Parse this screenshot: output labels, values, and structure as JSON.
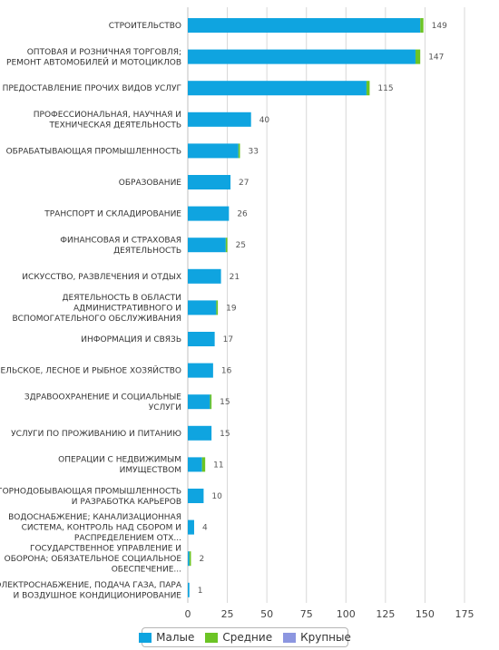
{
  "chart_data": {
    "type": "bar",
    "orientation": "horizontal",
    "stacked": true,
    "categories": [
      "СТРОИТЕЛЬСТВО",
      "ОПТОВАЯ И РОЗНИЧНАЯ ТОРГОВЛЯ; РЕМОНТ АВТОМОБИЛЕЙ И МОТОЦИКЛОВ",
      "ПРЕДОСТАВЛЕНИЕ ПРОЧИХ ВИДОВ УСЛУГ",
      "ПРОФЕССИОНАЛЬНАЯ, НАУЧНАЯ И ТЕХНИЧЕСКАЯ ДЕЯТЕЛЬНОСТЬ",
      "ОБРАБАТЫВАЮЩАЯ ПРОМЫШЛЕННОСТЬ",
      "ОБРАЗОВАНИЕ",
      "ТРАНСПОРТ И СКЛАДИРОВАНИЕ",
      "ФИНАНСОВАЯ И СТРАХОВАЯ ДЕЯТЕЛЬНОСТЬ",
      "ИСКУССТВО, РАЗВЛЕЧЕНИЯ И ОТДЫХ",
      "ДЕЯТЕЛЬНОСТЬ В ОБЛАСТИ АДМИНИСТРАТИВНОГО И ВСПОМОГАТЕЛЬНОГО ОБСЛУЖИВАНИЯ",
      "ИНФОРМАЦИЯ И СВЯЗЬ",
      "СЕЛЬСКОЕ, ЛЕСНОЕ И РЫБНОЕ ХОЗЯЙСТВО",
      "ЗДРАВООХРАНЕНИЕ И СОЦИАЛЬНЫЕ УСЛУГИ",
      "УСЛУГИ ПО ПРОЖИВАНИЮ И ПИТАНИЮ",
      "ОПЕРАЦИИ С НЕДВИЖИМЫМ ИМУЩЕСТВОМ",
      "ГОРНОДОБЫВАЮЩАЯ ПРОМЫШЛЕННОСТЬ И РАЗРАБОТКА КАРЬЕРОВ",
      "ВОДОСНАБЖЕНИЕ; КАНАЛИЗАЦИОННАЯ СИСТЕМА, КОНТРОЛЬ НАД СБОРОМ И РАСПРЕДЕЛЕНИЕМ ОТХ...",
      "ГОСУДАРСТВЕННОЕ УПРАВЛЕНИЕ И ОБОРОНА; ОБЯЗАТЕЛЬНОЕ СОЦИАЛЬНОЕ ОБЕСПЕЧЕНИЕ...",
      "ЭЛЕКТРОСНАБЖЕНИЕ, ПОДАЧА ГАЗА, ПАРА И ВОЗДУШНОЕ КОНДИЦИОНИРОВАНИЕ"
    ],
    "category_lines": [
      [
        "СТРОИТЕЛЬСТВО"
      ],
      [
        "ОПТОВАЯ И РОЗНИЧНАЯ ТОРГОВЛЯ;",
        "РЕМОНТ АВТОМОБИЛЕЙ И МОТОЦИКЛОВ"
      ],
      [
        "ПРЕДОСТАВЛЕНИЕ ПРОЧИХ ВИДОВ УСЛУГ"
      ],
      [
        "ПРОФЕССИОНАЛЬНАЯ, НАУЧНАЯ И",
        "ТЕХНИЧЕСКАЯ ДЕЯТЕЛЬНОСТЬ"
      ],
      [
        "ОБРАБАТЫВАЮЩАЯ ПРОМЫШЛЕННОСТЬ"
      ],
      [
        "ОБРАЗОВАНИЕ"
      ],
      [
        "ТРАНСПОРТ И СКЛАДИРОВАНИЕ"
      ],
      [
        "ФИНАНСОВАЯ И СТРАХОВАЯ",
        "ДЕЯТЕЛЬНОСТЬ"
      ],
      [
        "ИСКУССТВО, РАЗВЛЕЧЕНИЯ И ОТДЫХ"
      ],
      [
        "ДЕЯТЕЛЬНОСТЬ В ОБЛАСТИ",
        "АДМИНИСТРАТИВНОГО И",
        "ВСПОМОГАТЕЛЬНОГО ОБСЛУЖИВАНИЯ"
      ],
      [
        "ИНФОРМАЦИЯ И СВЯЗЬ"
      ],
      [
        "СЕЛЬСКОЕ, ЛЕСНОЕ И РЫБНОЕ ХОЗЯЙСТВО"
      ],
      [
        "ЗДРАВООХРАНЕНИЕ И СОЦИАЛЬНЫЕ",
        "УСЛУГИ"
      ],
      [
        "УСЛУГИ ПО ПРОЖИВАНИЮ И ПИТАНИЮ"
      ],
      [
        "ОПЕРАЦИИ С НЕДВИЖИМЫМ",
        "ИМУЩЕСТВОМ"
      ],
      [
        "ГОРНОДОБЫВАЮЩАЯ ПРОМЫШЛЕННОСТЬ",
        "И РАЗРАБОТКА КАРЬЕРОВ"
      ],
      [
        "ВОДОСНАБЖЕНИЕ; КАНАЛИЗАЦИОННАЯ",
        "СИСТЕМА, КОНТРОЛЬ НАД СБОРОМ И",
        "РАСПРЕДЕЛЕНИЕМ ОТХ..."
      ],
      [
        "ГОСУДАРСТВЕННОЕ УПРАВЛЕНИЕ И",
        "ОБОРОНА; ОБЯЗАТЕЛЬНОЕ СОЦИАЛЬНОЕ",
        "ОБЕСПЕЧЕНИЕ..."
      ],
      [
        "ЭЛЕКТРОСНАБЖЕНИЕ, ПОДАЧА ГАЗА, ПАРА",
        "И ВОЗДУШНОЕ КОНДИЦИОНИРОВАНИЕ"
      ]
    ],
    "series": [
      {
        "name": "Малые",
        "color": "#0fa4e0",
        "values": [
          147,
          144,
          113,
          40,
          32,
          27,
          26,
          24,
          21,
          18,
          17,
          16,
          14,
          15,
          9,
          10,
          4,
          1,
          1
        ]
      },
      {
        "name": "Средние",
        "color": "#6cc425",
        "values": [
          2,
          3,
          2,
          0,
          1,
          0,
          0,
          1,
          0,
          1,
          0,
          0,
          1,
          0,
          2,
          0,
          0,
          1,
          0
        ]
      },
      {
        "name": "Крупные",
        "color": "#8c96e0",
        "values": [
          0,
          0,
          0,
          0,
          0,
          0,
          0,
          0,
          0,
          0,
          0,
          0,
          0,
          0,
          0,
          0,
          0,
          0,
          0
        ]
      }
    ],
    "totals": [
      149,
      147,
      115,
      40,
      33,
      27,
      26,
      25,
      21,
      19,
      17,
      16,
      15,
      15,
      11,
      10,
      4,
      2,
      1
    ],
    "xlim": [
      0,
      175
    ],
    "xticks": [
      0,
      25,
      50,
      75,
      100,
      125,
      150,
      175
    ],
    "grid": true,
    "legend_position": "bottom-center"
  }
}
